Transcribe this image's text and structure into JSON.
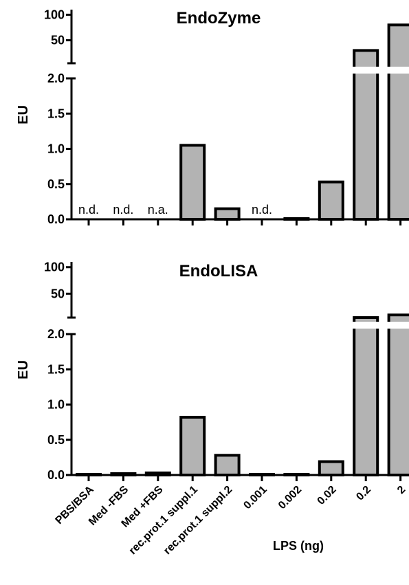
{
  "chart_data": [
    {
      "type": "bar",
      "title": "EndoZyme",
      "ylabel": "EU",
      "categories": [
        "PBS/BSA",
        "Med -FBS",
        "Med +FBS",
        "rec.prot.1 suppl.1",
        "rec.prot.1 suppl.2",
        "0.001",
        "0.002",
        "0.02",
        "0.2",
        "2"
      ],
      "values": [
        0,
        0,
        0,
        1.05,
        0.15,
        0,
        0.01,
        0.53,
        30,
        80
      ],
      "annotations": [
        "n.d.",
        "n.d.",
        "n.a.",
        "",
        "",
        "n.d.",
        "",
        "",
        "",
        ""
      ],
      "y_lower_ticks": [
        "0.0",
        "0.5",
        "1.0",
        "1.5",
        "2.0"
      ],
      "y_upper_ticks": [
        "50",
        "100"
      ],
      "ylim_lower": [
        0,
        2.0
      ],
      "ylim_upper": [
        5,
        110
      ],
      "broken_axis": true,
      "grid": false
    },
    {
      "type": "bar",
      "title": "EndoLISA",
      "ylabel": "EU",
      "categories": [
        "PBS/BSA",
        "Med -FBS",
        "Med +FBS",
        "rec.prot.1 suppl.1",
        "rec.prot.1 suppl.2",
        "0.001",
        "0.002",
        "0.02",
        "0.2",
        "2"
      ],
      "values": [
        0.01,
        0.02,
        0.03,
        0.82,
        0.28,
        0.01,
        0.01,
        0.19,
        5,
        10
      ],
      "annotations": [
        "",
        "",
        "",
        "",
        "",
        "",
        "",
        "",
        "",
        ""
      ],
      "y_lower_ticks": [
        "0.0",
        "0.5",
        "1.0",
        "1.5",
        "2.0"
      ],
      "y_upper_ticks": [
        "50",
        "100"
      ],
      "ylim_lower": [
        0,
        2.0
      ],
      "ylim_upper": [
        5,
        110
      ],
      "broken_axis": true,
      "grid": false,
      "xlabel": "LPS (ng)"
    }
  ],
  "colors": {
    "bar_fill": "#b3b3b3",
    "bar_stroke": "#000000"
  }
}
